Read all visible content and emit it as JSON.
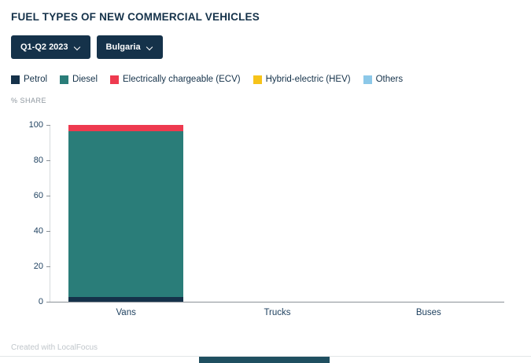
{
  "title": "FUEL TYPES OF NEW COMMERCIAL VEHICLES",
  "filters": {
    "period": "Q1-Q2 2023",
    "country": "Bulgaria"
  },
  "footer": "Created with LocalFocus",
  "chart_data": {
    "type": "bar",
    "stacked": true,
    "categories": [
      "Vans",
      "Trucks",
      "Buses"
    ],
    "series": [
      {
        "name": "Petrol",
        "color": "#15324a",
        "values": [
          2.8,
          0,
          0
        ]
      },
      {
        "name": "Diesel",
        "color": "#2a7d79",
        "values": [
          93.5,
          0,
          0
        ]
      },
      {
        "name": "Electrically chargeable (ECV)",
        "color": "#ee3a4f",
        "values": [
          3.7,
          0,
          0
        ]
      },
      {
        "name": "Hybrid-electric (HEV)",
        "color": "#f6c31a",
        "values": [
          0,
          0,
          0
        ]
      },
      {
        "name": "Others",
        "color": "#8cc8e8",
        "values": [
          0,
          0,
          0
        ]
      }
    ],
    "title": "FUEL TYPES OF NEW COMMERCIAL VEHICLES",
    "xlabel": "",
    "ylabel": "% SHARE",
    "ylim": [
      0,
      100
    ],
    "yticks": [
      0,
      20,
      40,
      60,
      80,
      100
    ],
    "grid": false,
    "legend_position": "top"
  }
}
